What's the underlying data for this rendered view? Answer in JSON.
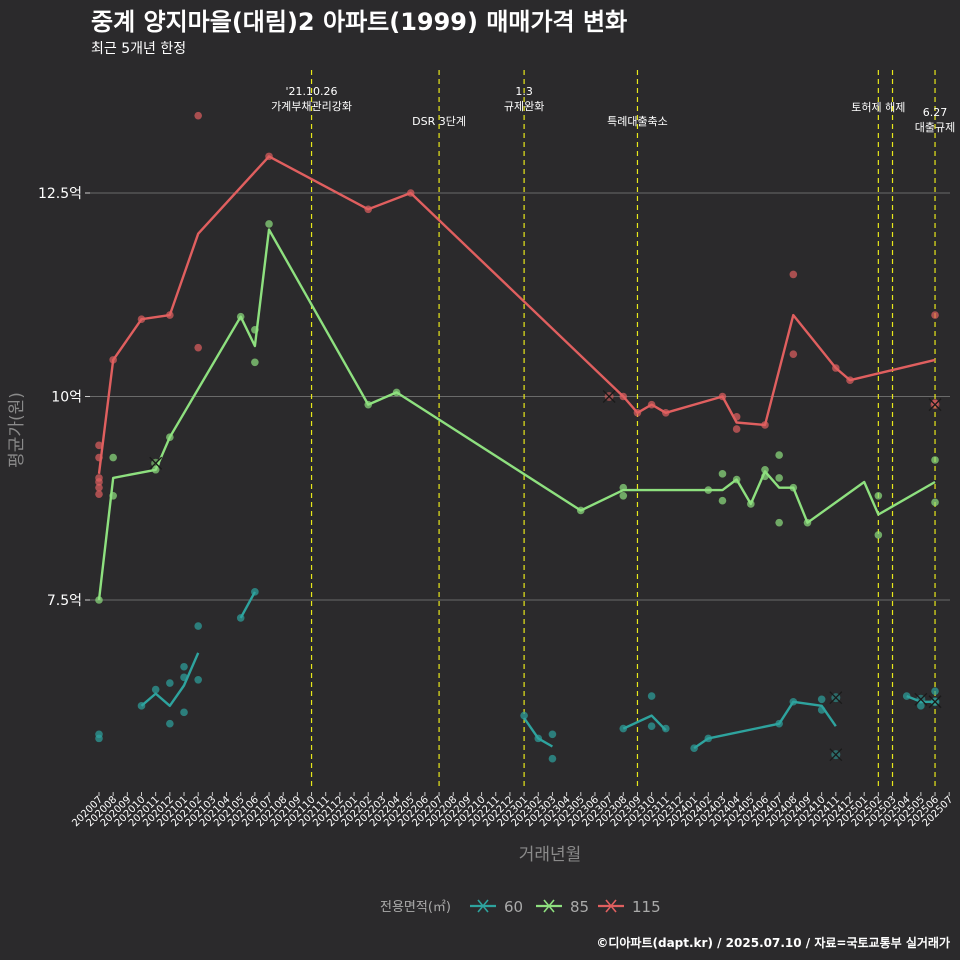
{
  "header": {
    "title": "중계 양지마을(대림)2 아파트(1999) 매매가격 변화",
    "subtitle": "최근 5개년 한정"
  },
  "caption": "©디아파트(dapt.kr) / 2025.07.10 / 자료=국토교통부 실거래가",
  "colors": {
    "background": "#2b2a2c",
    "grid": "#6a6a6a",
    "event_line": "#e8e81a",
    "s60": "#2ea39e",
    "s85": "#8ee07f",
    "s115": "#e05f5f"
  },
  "chart_data": {
    "type": "line",
    "xlabel": "거래년월",
    "ylabel": "평균가(원)",
    "y_unit": "억",
    "ylim": [
      5.6,
      13.7
    ],
    "y_ticks": [
      {
        "value": 7.5,
        "label": "7.5억"
      },
      {
        "value": 10,
        "label": "10억"
      },
      {
        "value": 12.5,
        "label": "12.5억"
      }
    ],
    "x_labels": [
      "202007",
      "202008",
      "202009",
      "202010",
      "202011",
      "202012",
      "202101",
      "202102",
      "202103",
      "202104",
      "202105",
      "202106",
      "202107",
      "202108",
      "202109",
      "202110",
      "202111",
      "202112",
      "202201",
      "202202",
      "202203",
      "202204",
      "202205",
      "202206",
      "202207",
      "202208",
      "202209",
      "202210",
      "202211",
      "202212",
      "202301",
      "202302",
      "202303",
      "202304",
      "202305",
      "202306",
      "202307",
      "202308",
      "202309",
      "202310",
      "202311",
      "202312",
      "202401",
      "202402",
      "202403",
      "202404",
      "202405",
      "202406",
      "202407",
      "202408",
      "202409",
      "202410",
      "202411",
      "202412",
      "202501",
      "202502",
      "202503",
      "202504",
      "202505",
      "202506",
      "202507"
    ],
    "legend": {
      "title": "전용면적(㎡)",
      "position": "bottom",
      "items": [
        "60",
        "85",
        "115"
      ]
    },
    "events": [
      {
        "month": "202110",
        "label": "'21.10.26\n가계부채관리강화",
        "row": 0
      },
      {
        "month": "202207",
        "label": "DSR 3단계",
        "row": 2
      },
      {
        "month": "202301",
        "label": "1.3\n규제완화",
        "row": 0
      },
      {
        "month": "202309",
        "label": "특례대출축소",
        "row": 2
      },
      {
        "month": "202502",
        "label": "토허제 해제",
        "row": 1
      },
      {
        "month": "202503",
        "label": "",
        "row": 1
      },
      {
        "month": "202506",
        "label": "6.27\n대출규제",
        "row": 1.7
      }
    ],
    "series": [
      {
        "name": "60",
        "color": "#2ea39e",
        "line": [
          [
            [
              "202010",
              6.2
            ],
            [
              "202011",
              6.35
            ],
            [
              "202012",
              6.2
            ],
            [
              "202101",
              6.45
            ],
            [
              "202102",
              6.85
            ]
          ],
          [
            [
              "202105",
              7.28
            ],
            [
              "202106",
              7.6
            ]
          ],
          [
            [
              "202301",
              6.05
            ],
            [
              "202302",
              5.8
            ],
            [
              "202303",
              5.7
            ]
          ],
          [
            [
              "202308",
              5.92
            ],
            [
              "202310",
              6.08
            ],
            [
              "202311",
              5.9
            ]
          ],
          [
            [
              "202401",
              5.68
            ],
            [
              "202402",
              5.8
            ],
            [
              "202407",
              5.98
            ],
            [
              "202408",
              6.25
            ],
            [
              "202410",
              6.2
            ],
            [
              "202411",
              5.95
            ]
          ],
          [
            [
              "202504",
              6.32
            ],
            [
              "202505",
              6.25
            ],
            [
              "202506",
              6.25
            ]
          ]
        ],
        "points": [
          [
            "202007",
            5.8
          ],
          [
            "202007",
            5.85
          ],
          [
            "202010",
            6.2
          ],
          [
            "202011",
            6.4
          ],
          [
            "202012",
            5.98
          ],
          [
            "202012",
            6.48
          ],
          [
            "202101",
            6.12
          ],
          [
            "202101",
            6.68
          ],
          [
            "202101",
            6.55
          ],
          [
            "202102",
            7.18
          ],
          [
            "202102",
            6.52
          ],
          [
            "202105",
            7.28
          ],
          [
            "202106",
            7.6
          ],
          [
            "202301",
            6.08
          ],
          [
            "202302",
            5.8
          ],
          [
            "202303",
            5.85
          ],
          [
            "202303",
            5.55
          ],
          [
            "202308",
            5.92
          ],
          [
            "202310",
            5.95
          ],
          [
            "202310",
            6.32
          ],
          [
            "202311",
            5.92
          ],
          [
            "202401",
            5.68
          ],
          [
            "202402",
            5.8
          ],
          [
            "202407",
            5.98
          ],
          [
            "202408",
            6.25
          ],
          [
            "202410",
            6.28
          ],
          [
            "202410",
            6.15
          ],
          [
            "202504",
            6.32
          ],
          [
            "202505",
            6.2
          ],
          [
            "202506",
            6.25
          ],
          [
            "202506",
            6.38
          ]
        ],
        "cancelled": [
          [
            "202411",
            6.3
          ],
          [
            "202411",
            5.6
          ],
          [
            "202505",
            6.28
          ],
          [
            "202506",
            6.25
          ]
        ]
      },
      {
        "name": "85",
        "color": "#8ee07f",
        "line": [
          [
            [
              "202007",
              7.5
            ],
            [
              "202008",
              9.0
            ],
            [
              "202011",
              9.1
            ],
            [
              "202012",
              9.5
            ],
            [
              "202105",
              10.98
            ],
            [
              "202106",
              10.62
            ],
            [
              "202107",
              12.05
            ],
            [
              "202202",
              9.9
            ],
            [
              "202204",
              10.05
            ],
            [
              "202305",
              8.6
            ],
            [
              "202308",
              8.85
            ],
            [
              "202403",
              8.85
            ],
            [
              "202404",
              8.98
            ],
            [
              "202405",
              8.68
            ],
            [
              "202406",
              9.08
            ],
            [
              "202407",
              8.88
            ],
            [
              "202408",
              8.88
            ],
            [
              "202409",
              8.45
            ],
            [
              "202501",
              8.95
            ],
            [
              "202502",
              8.55
            ],
            [
              "202506",
              8.95
            ]
          ]
        ],
        "points": [
          [
            "202007",
            7.5
          ],
          [
            "202008",
            9.25
          ],
          [
            "202008",
            8.78
          ],
          [
            "202011",
            9.1
          ],
          [
            "202012",
            9.5
          ],
          [
            "202105",
            10.98
          ],
          [
            "202106",
            10.82
          ],
          [
            "202106",
            10.42
          ],
          [
            "202107",
            12.12
          ],
          [
            "202202",
            9.9
          ],
          [
            "202204",
            10.05
          ],
          [
            "202305",
            8.6
          ],
          [
            "202308",
            8.78
          ],
          [
            "202308",
            8.88
          ],
          [
            "202402",
            8.85
          ],
          [
            "202403",
            8.72
          ],
          [
            "202403",
            9.05
          ],
          [
            "202404",
            8.98
          ],
          [
            "202405",
            8.68
          ],
          [
            "202406",
            9.1
          ],
          [
            "202406",
            9.02
          ],
          [
            "202407",
            9.28
          ],
          [
            "202407",
            9.0
          ],
          [
            "202407",
            8.45
          ],
          [
            "202408",
            8.88
          ],
          [
            "202409",
            8.45
          ],
          [
            "202502",
            8.78
          ],
          [
            "202502",
            8.3
          ],
          [
            "202506",
            9.22
          ],
          [
            "202506",
            8.7
          ]
        ],
        "cancelled": [
          [
            "202011",
            9.18
          ]
        ]
      },
      {
        "name": "115",
        "color": "#e05f5f",
        "line": [
          [
            [
              "202007",
              9.05
            ],
            [
              "202008",
              10.45
            ],
            [
              "202010",
              10.95
            ],
            [
              "202012",
              11.0
            ],
            [
              "202102",
              12.0
            ],
            [
              "202107",
              12.95
            ],
            [
              "202202",
              12.3
            ],
            [
              "202205",
              12.5
            ],
            [
              "202308",
              10.0
            ],
            [
              "202309",
              9.8
            ],
            [
              "202310",
              9.9
            ],
            [
              "202311",
              9.8
            ],
            [
              "202403",
              10.0
            ],
            [
              "202404",
              9.68
            ],
            [
              "202406",
              9.65
            ],
            [
              "202408",
              11.0
            ],
            [
              "202411",
              10.35
            ],
            [
              "202412",
              10.2
            ],
            [
              "202506",
              10.45
            ]
          ]
        ],
        "points": [
          [
            "202007",
            9.4
          ],
          [
            "202007",
            9.25
          ],
          [
            "202007",
            9.0
          ],
          [
            "202007",
            8.95
          ],
          [
            "202007",
            8.88
          ],
          [
            "202007",
            8.8
          ],
          [
            "202008",
            10.45
          ],
          [
            "202010",
            10.95
          ],
          [
            "202012",
            11.0
          ],
          [
            "202102",
            10.6
          ],
          [
            "202102",
            13.45
          ],
          [
            "202107",
            12.95
          ],
          [
            "202202",
            12.3
          ],
          [
            "202205",
            12.5
          ],
          [
            "202308",
            10.0
          ],
          [
            "202309",
            9.8
          ],
          [
            "202310",
            9.9
          ],
          [
            "202311",
            9.8
          ],
          [
            "202403",
            10.0
          ],
          [
            "202404",
            9.75
          ],
          [
            "202404",
            9.6
          ],
          [
            "202406",
            9.65
          ],
          [
            "202408",
            11.5
          ],
          [
            "202408",
            10.52
          ],
          [
            "202411",
            10.35
          ],
          [
            "202412",
            10.2
          ],
          [
            "202506",
            11.0
          ],
          [
            "202506",
            9.92
          ]
        ],
        "cancelled": [
          [
            "202307",
            10.0
          ],
          [
            "202506",
            9.9
          ]
        ]
      }
    ]
  }
}
